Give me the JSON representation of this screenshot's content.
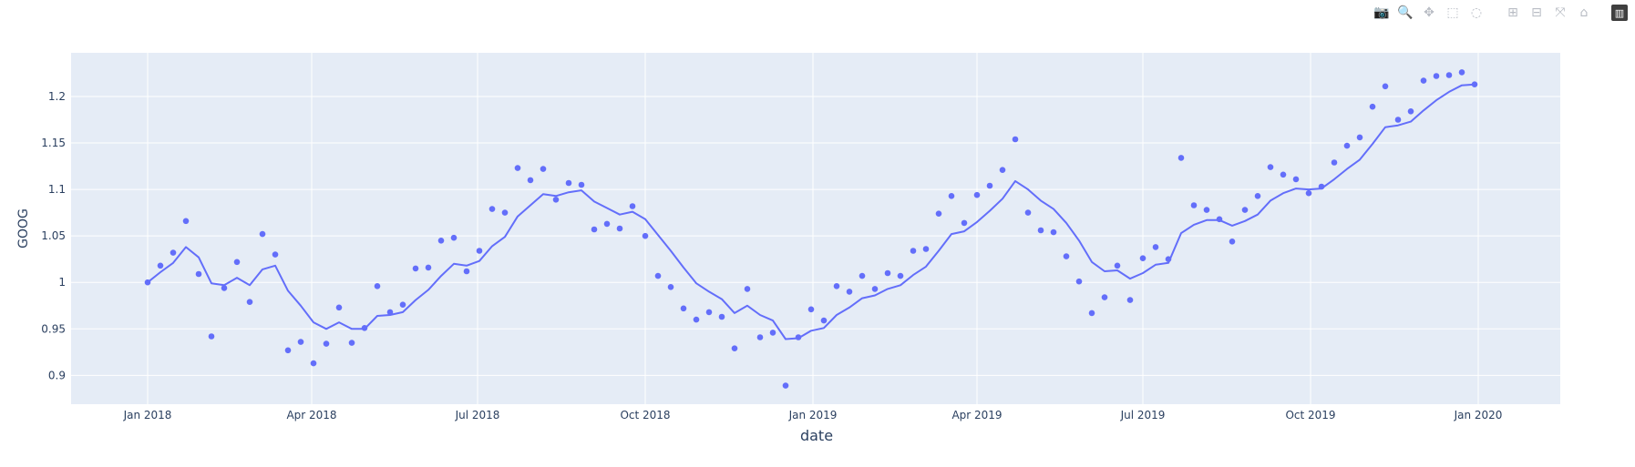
{
  "modebar": {
    "buttons": [
      {
        "name": "camera-icon",
        "glyph": "📷"
      },
      {
        "name": "zoom-icon",
        "glyph": "🔍"
      },
      {
        "name": "pan-icon",
        "glyph": "✥"
      },
      {
        "name": "box-select-icon",
        "glyph": "⬚"
      },
      {
        "name": "lasso-select-icon",
        "glyph": "◌"
      },
      {
        "name": "zoom-in-icon",
        "glyph": "⊞"
      },
      {
        "name": "zoom-out-icon",
        "glyph": "⊟"
      },
      {
        "name": "autoscale-icon",
        "glyph": "⤧"
      },
      {
        "name": "reset-axes-icon",
        "glyph": "⌂"
      },
      {
        "name": "plotly-logo-icon",
        "glyph": "▥"
      }
    ]
  },
  "chart_data": {
    "type": "line",
    "xlabel": "date",
    "ylabel": "GOOG",
    "xlim": [
      "2017-11-20",
      "2020-02-15"
    ],
    "ylim": [
      0.869,
      1.247
    ],
    "x_ticks": [
      {
        "date": "2018-01-01",
        "label": "Jan 2018"
      },
      {
        "date": "2018-04-01",
        "label": "Apr 2018"
      },
      {
        "date": "2018-07-01",
        "label": "Jul 2018"
      },
      {
        "date": "2018-10-01",
        "label": "Oct 2018"
      },
      {
        "date": "2019-01-01",
        "label": "Jan 2019"
      },
      {
        "date": "2019-04-01",
        "label": "Apr 2019"
      },
      {
        "date": "2019-07-01",
        "label": "Jul 2019"
      },
      {
        "date": "2019-10-01",
        "label": "Oct 2019"
      },
      {
        "date": "2020-01-01",
        "label": "Jan 2020"
      }
    ],
    "y_ticks": [
      {
        "value": 0.9,
        "label": "0.9"
      },
      {
        "value": 0.95,
        "label": "0.95"
      },
      {
        "value": 1.0,
        "label": "1"
      },
      {
        "value": 1.05,
        "label": "1.05"
      },
      {
        "value": 1.1,
        "label": "1.1"
      },
      {
        "value": 1.15,
        "label": "1.15"
      },
      {
        "value": 1.2,
        "label": "1.2"
      }
    ],
    "grid": true,
    "colors": {
      "series": "#636efa",
      "plot_bg": "#e5ecf6",
      "grid": "#ffffff",
      "text": "#2a3f5f"
    },
    "series": [
      {
        "mode": "markers",
        "x": [
          "2018-01-01",
          "2018-01-08",
          "2018-01-15",
          "2018-01-22",
          "2018-01-29",
          "2018-02-05",
          "2018-02-12",
          "2018-02-19",
          "2018-02-26",
          "2018-03-05",
          "2018-03-12",
          "2018-03-19",
          "2018-03-26",
          "2018-04-02",
          "2018-04-09",
          "2018-04-16",
          "2018-04-23",
          "2018-04-30",
          "2018-05-07",
          "2018-05-14",
          "2018-05-21",
          "2018-05-28",
          "2018-06-04",
          "2018-06-11",
          "2018-06-18",
          "2018-06-25",
          "2018-07-02",
          "2018-07-09",
          "2018-07-16",
          "2018-07-23",
          "2018-07-30",
          "2018-08-06",
          "2018-08-13",
          "2018-08-20",
          "2018-08-27",
          "2018-09-03",
          "2018-09-10",
          "2018-09-17",
          "2018-09-24",
          "2018-10-01",
          "2018-10-08",
          "2018-10-15",
          "2018-10-22",
          "2018-10-29",
          "2018-11-05",
          "2018-11-12",
          "2018-11-19",
          "2018-11-26",
          "2018-12-03",
          "2018-12-10",
          "2018-12-17",
          "2018-12-24",
          "2018-12-31",
          "2019-01-07",
          "2019-01-14",
          "2019-01-21",
          "2019-01-28",
          "2019-02-04",
          "2019-02-11",
          "2019-02-18",
          "2019-02-25",
          "2019-03-04",
          "2019-03-11",
          "2019-03-18",
          "2019-03-25",
          "2019-04-01",
          "2019-04-08",
          "2019-04-15",
          "2019-04-22",
          "2019-04-29",
          "2019-05-06",
          "2019-05-13",
          "2019-05-20",
          "2019-05-27",
          "2019-06-03",
          "2019-06-10",
          "2019-06-17",
          "2019-06-24",
          "2019-07-01",
          "2019-07-08",
          "2019-07-15",
          "2019-07-22",
          "2019-07-29",
          "2019-08-05",
          "2019-08-12",
          "2019-08-19",
          "2019-08-26",
          "2019-09-02",
          "2019-09-09",
          "2019-09-16",
          "2019-09-23",
          "2019-09-30",
          "2019-10-07",
          "2019-10-14",
          "2019-10-21",
          "2019-10-28",
          "2019-11-04",
          "2019-11-11",
          "2019-11-18",
          "2019-11-25",
          "2019-12-02",
          "2019-12-09",
          "2019-12-16",
          "2019-12-23",
          "2019-12-30"
        ],
        "y": [
          1.0,
          1.018,
          1.032,
          1.066,
          1.009,
          0.942,
          0.994,
          1.022,
          0.979,
          1.052,
          1.03,
          0.927,
          0.936,
          0.913,
          0.934,
          0.973,
          0.935,
          0.951,
          0.996,
          0.968,
          0.976,
          1.015,
          1.016,
          1.045,
          1.048,
          1.012,
          1.034,
          1.079,
          1.075,
          1.123,
          1.11,
          1.122,
          1.089,
          1.107,
          1.105,
          1.057,
          1.063,
          1.058,
          1.082,
          1.05,
          1.007,
          0.995,
          0.972,
          0.96,
          0.968,
          0.963,
          0.929,
          0.993,
          0.941,
          0.946,
          0.889,
          0.941,
          0.971,
          0.959,
          0.996,
          0.99,
          1.007,
          0.993,
          1.01,
          1.007,
          1.034,
          1.036,
          1.074,
          1.093,
          1.064,
          1.094,
          1.104,
          1.121,
          1.154,
          1.075,
          1.056,
          1.054,
          1.028,
          1.001,
          0.967,
          0.984,
          1.018,
          0.981,
          1.026,
          1.038,
          1.025,
          1.134,
          1.083,
          1.078,
          1.068,
          1.044,
          1.078,
          1.093,
          1.124,
          1.116,
          1.111,
          1.096,
          1.103,
          1.129,
          1.147,
          1.156,
          1.189,
          1.211,
          1.175,
          1.184,
          1.217,
          1.222,
          1.223,
          1.226,
          1.213
        ]
      },
      {
        "mode": "lines",
        "x": [
          "2018-01-01",
          "2018-01-08",
          "2018-01-15",
          "2018-01-22",
          "2018-01-29",
          "2018-02-05",
          "2018-02-12",
          "2018-02-19",
          "2018-02-26",
          "2018-03-05",
          "2018-03-12",
          "2018-03-19",
          "2018-03-26",
          "2018-04-02",
          "2018-04-09",
          "2018-04-16",
          "2018-04-23",
          "2018-04-30",
          "2018-05-07",
          "2018-05-14",
          "2018-05-21",
          "2018-05-28",
          "2018-06-04",
          "2018-06-11",
          "2018-06-18",
          "2018-06-25",
          "2018-07-02",
          "2018-07-09",
          "2018-07-16",
          "2018-07-23",
          "2018-07-30",
          "2018-08-06",
          "2018-08-13",
          "2018-08-20",
          "2018-08-27",
          "2018-09-03",
          "2018-09-10",
          "2018-09-17",
          "2018-09-24",
          "2018-10-01",
          "2018-10-08",
          "2018-10-15",
          "2018-10-22",
          "2018-10-29",
          "2018-11-05",
          "2018-11-12",
          "2018-11-19",
          "2018-11-26",
          "2018-12-03",
          "2018-12-10",
          "2018-12-17",
          "2018-12-24",
          "2018-12-31",
          "2019-01-07",
          "2019-01-14",
          "2019-01-21",
          "2019-01-28",
          "2019-02-04",
          "2019-02-11",
          "2019-02-18",
          "2019-02-25",
          "2019-03-04",
          "2019-03-11",
          "2019-03-18",
          "2019-03-25",
          "2019-04-01",
          "2019-04-08",
          "2019-04-15",
          "2019-04-22",
          "2019-04-29",
          "2019-05-06",
          "2019-05-13",
          "2019-05-20",
          "2019-05-27",
          "2019-06-03",
          "2019-06-10",
          "2019-06-17",
          "2019-06-24",
          "2019-07-01",
          "2019-07-08",
          "2019-07-15",
          "2019-07-22",
          "2019-07-29",
          "2019-08-05",
          "2019-08-12",
          "2019-08-19",
          "2019-08-26",
          "2019-09-02",
          "2019-09-09",
          "2019-09-16",
          "2019-09-23",
          "2019-09-30",
          "2019-10-07",
          "2019-10-14",
          "2019-10-21",
          "2019-10-28",
          "2019-11-04",
          "2019-11-11",
          "2019-11-18",
          "2019-11-25",
          "2019-12-02",
          "2019-12-09",
          "2019-12-16",
          "2019-12-23",
          "2019-12-30"
        ],
        "y": [
          1.0,
          1.011,
          1.021,
          1.038,
          1.027,
          0.999,
          0.997,
          1.005,
          0.997,
          1.014,
          1.018,
          0.991,
          0.975,
          0.957,
          0.95,
          0.957,
          0.95,
          0.95,
          0.964,
          0.965,
          0.968,
          0.981,
          0.992,
          1.007,
          1.02,
          1.018,
          1.023,
          1.039,
          1.049,
          1.071,
          1.083,
          1.095,
          1.093,
          1.097,
          1.099,
          1.087,
          1.08,
          1.073,
          1.076,
          1.068,
          1.051,
          1.034,
          1.016,
          0.999,
          0.99,
          0.982,
          0.967,
          0.975,
          0.965,
          0.959,
          0.939,
          0.94,
          0.948,
          0.951,
          0.965,
          0.973,
          0.983,
          0.986,
          0.993,
          0.997,
          1.008,
          1.017,
          1.034,
          1.052,
          1.055,
          1.065,
          1.077,
          1.09,
          1.109,
          1.1,
          1.088,
          1.079,
          1.064,
          1.045,
          1.022,
          1.012,
          1.013,
          1.004,
          1.01,
          1.019,
          1.021,
          1.053,
          1.062,
          1.067,
          1.067,
          1.061,
          1.066,
          1.073,
          1.088,
          1.096,
          1.101,
          1.1,
          1.101,
          1.111,
          1.122,
          1.132,
          1.149,
          1.167,
          1.169,
          1.173,
          1.185,
          1.196,
          1.205,
          1.212,
          1.213
        ]
      }
    ]
  }
}
